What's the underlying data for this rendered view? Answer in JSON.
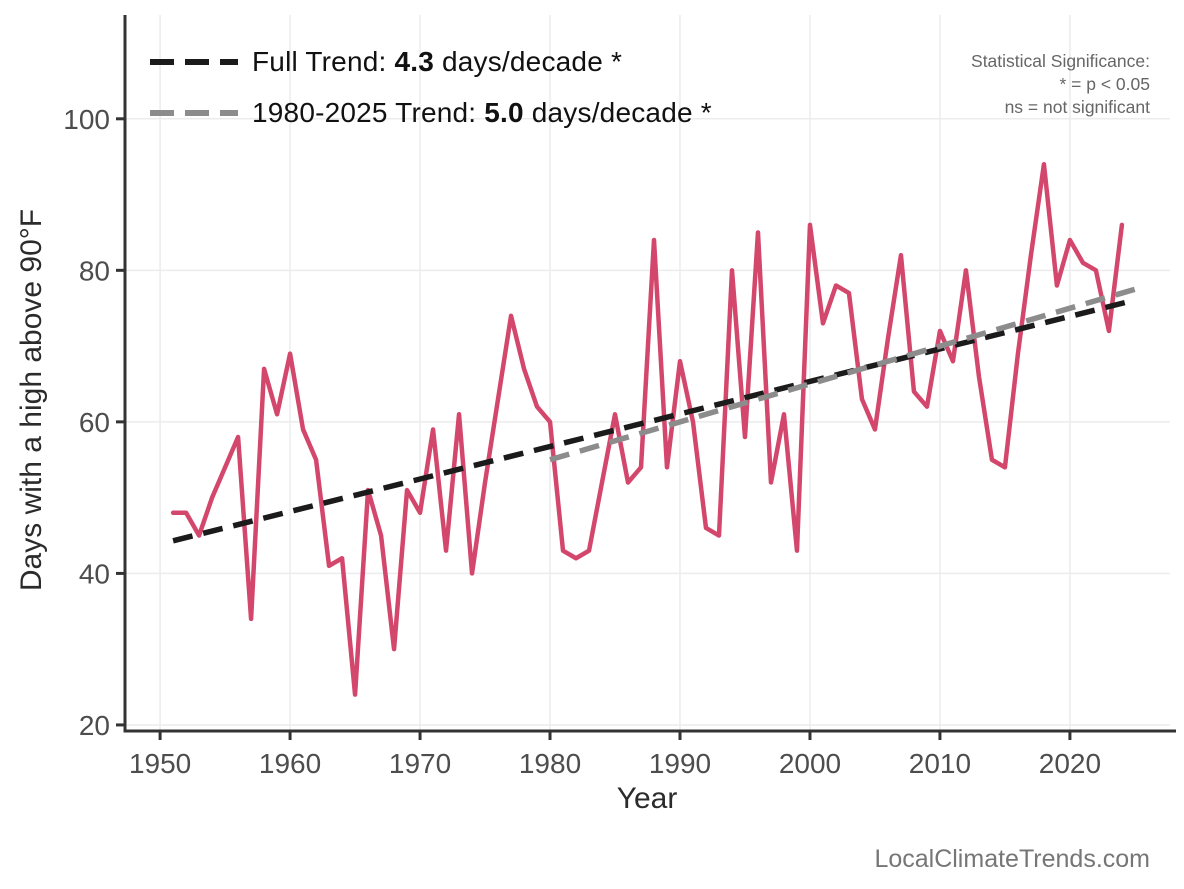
{
  "watermark": "LocalClimateTrends.com",
  "significance_note": {
    "line1": "Statistical Significance:",
    "line2": "* = p < 0.05",
    "line3": "ns = not significant"
  },
  "legend": {
    "full_trend": {
      "prefix": "Full Trend: ",
      "value": "4.3",
      "suffix": " days/decade *"
    },
    "recent_trend": {
      "prefix": "1980-2025 Trend: ",
      "value": "5.0",
      "suffix": " days/decade *"
    }
  },
  "colors": {
    "series": "#d4476c",
    "full_trend": "#1b1b1b",
    "recent_trend": "#8c8c8c",
    "grid": "#ececec",
    "axis": "#333333",
    "tick_label": "#4d4d4d",
    "note": "#666666",
    "watermark": "#767676"
  },
  "chart_data": {
    "type": "line",
    "title": "",
    "xlabel": "Year",
    "ylabel": "Days with a high above 90°F",
    "legend_position": "top-left",
    "grid": true,
    "xlim": [
      1947.3,
      2027.7
    ],
    "ylim": [
      19.2,
      113.7
    ],
    "x_ticks": [
      1950,
      1960,
      1970,
      1980,
      1990,
      2000,
      2010,
      2020
    ],
    "y_ticks": [
      20,
      40,
      60,
      80,
      100
    ],
    "series": [
      {
        "name": "Days with a high above 90°F per year",
        "x": [
          1951,
          1952,
          1953,
          1954,
          1955,
          1956,
          1957,
          1958,
          1959,
          1960,
          1961,
          1962,
          1963,
          1964,
          1965,
          1966,
          1967,
          1968,
          1969,
          1970,
          1971,
          1972,
          1973,
          1974,
          1975,
          1976,
          1977,
          1978,
          1979,
          1980,
          1981,
          1982,
          1983,
          1984,
          1985,
          1986,
          1987,
          1988,
          1989,
          1990,
          1991,
          1992,
          1993,
          1994,
          1995,
          1996,
          1997,
          1998,
          1999,
          2000,
          2001,
          2002,
          2003,
          2004,
          2005,
          2006,
          2007,
          2008,
          2009,
          2010,
          2011,
          2012,
          2013,
          2014,
          2015,
          2016,
          2017,
          2018,
          2019,
          2020,
          2021,
          2022,
          2023,
          2024
        ],
        "y": [
          48,
          48,
          45,
          50,
          54,
          58,
          34,
          67,
          61,
          69,
          59,
          55,
          41,
          42,
          24,
          51,
          45,
          30,
          51,
          48,
          59,
          43,
          61,
          40,
          52,
          63,
          74,
          67,
          62,
          60,
          43,
          42,
          43,
          52,
          61,
          52,
          54,
          84,
          54,
          68,
          60,
          46,
          45,
          80,
          58,
          85,
          52,
          61,
          43,
          86,
          73,
          78,
          77,
          63,
          59,
          71,
          82,
          64,
          62,
          72,
          68,
          80,
          66,
          55,
          54,
          69,
          82,
          94,
          78,
          84,
          81,
          80,
          72,
          86
        ]
      }
    ],
    "trend_lines": [
      {
        "name": "full_trend",
        "label": "Full Trend: 4.3 days/decade *",
        "slope_days_per_decade": 4.3,
        "significant": true,
        "x": [
          1951,
          2024.6
        ],
        "y": [
          44.3,
          75.9
        ]
      },
      {
        "name": "recent_trend",
        "label": "1980-2025 Trend: 5.0 days/decade *",
        "slope_days_per_decade": 5.0,
        "significant": true,
        "x": [
          1980,
          2025
        ],
        "y": [
          55.0,
          77.5
        ]
      }
    ]
  }
}
